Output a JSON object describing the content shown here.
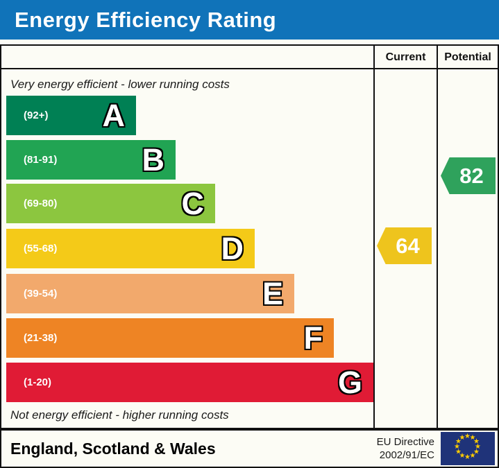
{
  "title": "Energy Efficiency Rating",
  "header": {
    "current": "Current",
    "potential": "Potential"
  },
  "captions": {
    "top": "Very energy efficient - lower running costs",
    "bottom": "Not energy efficient - higher running costs"
  },
  "bands": [
    {
      "letter": "A",
      "range": "(92+)",
      "color": "#008054"
    },
    {
      "letter": "B",
      "range": "(81-91)",
      "color": "#21a453"
    },
    {
      "letter": "C",
      "range": "(69-80)",
      "color": "#8cc63f"
    },
    {
      "letter": "D",
      "range": "(55-68)",
      "color": "#f4ca18"
    },
    {
      "letter": "E",
      "range": "(39-54)",
      "color": "#f2a96c"
    },
    {
      "letter": "F",
      "range": "(21-38)",
      "color": "#ee8424"
    },
    {
      "letter": "G",
      "range": "(1-20)",
      "color": "#e01b35"
    }
  ],
  "current": {
    "value": "64",
    "color": "#eec41d",
    "band": "D"
  },
  "potential": {
    "value": "82",
    "color": "#2fa25c",
    "band": "B"
  },
  "footer": {
    "region": "England, Scotland & Wales",
    "directive_line1": "EU Directive",
    "directive_line2": "2002/91/EC",
    "flag_icon": "eu-flag"
  },
  "colors": {
    "title_bar": "#1073b9",
    "border": "#111111",
    "flag_blue": "#1f3379",
    "star_yellow": "#ffcc00"
  },
  "chart_data": {
    "type": "bar",
    "title": "Energy Efficiency Rating",
    "orientation": "horizontal",
    "categories": [
      "A",
      "B",
      "C",
      "D",
      "E",
      "F",
      "G"
    ],
    "category_ranges": [
      "92+",
      "81-91",
      "69-80",
      "55-68",
      "39-54",
      "21-38",
      "1-20"
    ],
    "bar_colors": [
      "#008054",
      "#21a453",
      "#8cc63f",
      "#f4ca18",
      "#f2a96c",
      "#ee8424",
      "#e01b35"
    ],
    "bar_relative_lengths": [
      187,
      244,
      301,
      358,
      415,
      472,
      529
    ],
    "series": [
      {
        "name": "Current",
        "value": 64,
        "band": "D",
        "color": "#eec41d"
      },
      {
        "name": "Potential",
        "value": 82,
        "band": "B",
        "color": "#2fa25c"
      }
    ],
    "annotations": [
      "Very energy efficient - lower running costs",
      "Not energy efficient - higher running costs"
    ],
    "legend_position": "none",
    "grid": false
  }
}
